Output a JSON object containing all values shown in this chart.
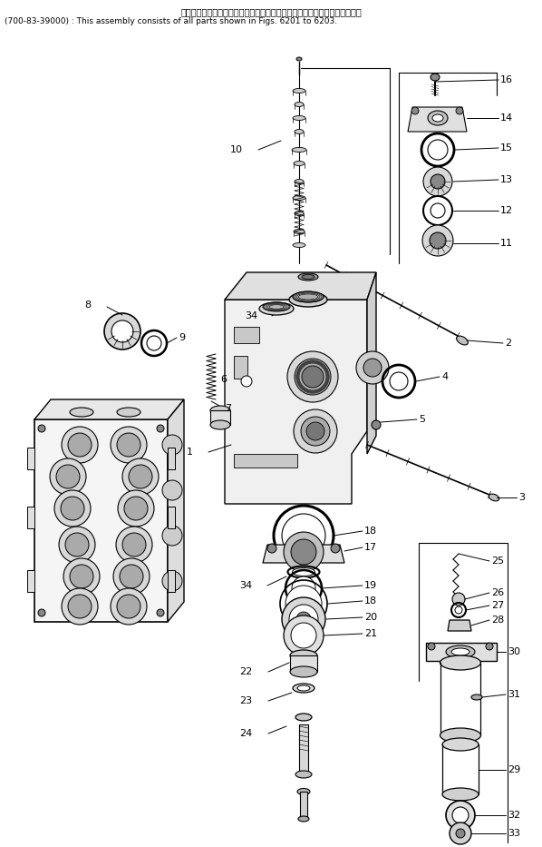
{
  "title_line1": "このアセンブリの構成部品は第６２０１図から第６２０３図まで含みます．",
  "title_line2": "(700-83-39000) : This assembly consists of all parts shown in Figs. 6201 to 6203.",
  "bg_color": "#ffffff",
  "lc": "#000000",
  "tc": "#000000",
  "lfsz": 8,
  "tfsz1": 7,
  "tfsz2": 6.5,
  "fw": 5.98,
  "fh": 9.33,
  "dpi": 100
}
